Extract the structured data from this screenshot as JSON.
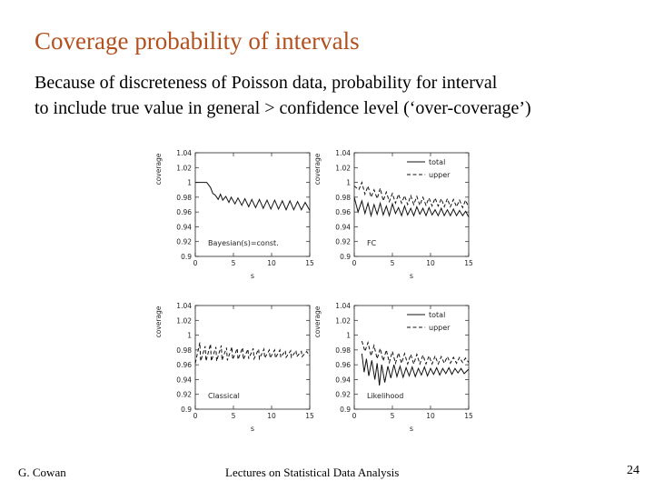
{
  "slide": {
    "title": "Coverage probability of intervals",
    "subtitle_line1": "Because of discreteness of Poisson data, probability for interval",
    "subtitle_line2": "to include true value in general > confidence level (‘over-coverage’)"
  },
  "footer": {
    "author": "G. Cowan",
    "course": "Lectures on Statistical Data Analysis",
    "page": "24"
  },
  "chart_data": [
    {
      "type": "line",
      "title": "Bayesian(s)=const.",
      "xlabel": "s",
      "ylabel": "coverage",
      "xlim": [
        0,
        15
      ],
      "ylim": [
        0.9,
        1.04
      ],
      "xticks": [
        "0",
        "5",
        "10",
        "15"
      ],
      "yticks": [
        "0.9",
        "0.92",
        "0.94",
        "0.96",
        "0.98",
        "1",
        "1.02",
        "1.04"
      ],
      "series": [
        {
          "values": [
            [
              0,
              1.0
            ],
            [
              1.5,
              1.0
            ],
            [
              2.0,
              0.993
            ],
            [
              2.3,
              0.985
            ],
            [
              2.6,
              0.983
            ],
            [
              3.0,
              0.977
            ],
            [
              3.3,
              0.984
            ],
            [
              3.6,
              0.976
            ],
            [
              4.0,
              0.981
            ],
            [
              4.4,
              0.973
            ],
            [
              4.7,
              0.98
            ],
            [
              5.2,
              0.971
            ],
            [
              5.6,
              0.979
            ],
            [
              6.1,
              0.969
            ],
            [
              6.5,
              0.978
            ],
            [
              7.0,
              0.967
            ],
            [
              7.4,
              0.977
            ],
            [
              7.9,
              0.966
            ],
            [
              8.4,
              0.977
            ],
            [
              8.9,
              0.965
            ],
            [
              9.4,
              0.976
            ],
            [
              9.9,
              0.964
            ],
            [
              10.4,
              0.976
            ],
            [
              10.9,
              0.964
            ],
            [
              11.4,
              0.975
            ],
            [
              11.9,
              0.963
            ],
            [
              12.4,
              0.975
            ],
            [
              12.9,
              0.963
            ],
            [
              13.4,
              0.974
            ],
            [
              13.9,
              0.963
            ],
            [
              14.4,
              0.973
            ],
            [
              15.0,
              0.962
            ]
          ],
          "style": "solid"
        }
      ]
    },
    {
      "type": "line",
      "title": "FC",
      "xlabel": "s",
      "ylabel": "coverage",
      "xlim": [
        0,
        15
      ],
      "ylim": [
        0.9,
        1.04
      ],
      "xticks": [
        "0",
        "5",
        "10",
        "15"
      ],
      "yticks": [
        "0.9",
        "0.92",
        "0.94",
        "0.96",
        "0.98",
        "1",
        "1.02",
        "1.04"
      ],
      "series": [
        {
          "name": "total",
          "style": "solid",
          "values": [
            [
              0,
              0.98
            ],
            [
              0.5,
              0.96
            ],
            [
              1.0,
              0.975
            ],
            [
              1.4,
              0.958
            ],
            [
              1.8,
              0.972
            ],
            [
              2.2,
              0.955
            ],
            [
              2.6,
              0.97
            ],
            [
              3.0,
              0.957
            ],
            [
              3.4,
              0.972
            ],
            [
              3.8,
              0.956
            ],
            [
              4.2,
              0.968
            ],
            [
              4.6,
              0.955
            ],
            [
              5.0,
              0.971
            ],
            [
              5.4,
              0.958
            ],
            [
              5.8,
              0.966
            ],
            [
              6.2,
              0.955
            ],
            [
              6.6,
              0.968
            ],
            [
              7.0,
              0.956
            ],
            [
              7.4,
              0.965
            ],
            [
              7.8,
              0.955
            ],
            [
              8.2,
              0.967
            ],
            [
              8.6,
              0.957
            ],
            [
              9.0,
              0.965
            ],
            [
              9.4,
              0.955
            ],
            [
              9.8,
              0.966
            ],
            [
              10.2,
              0.956
            ],
            [
              10.6,
              0.963
            ],
            [
              11.0,
              0.955
            ],
            [
              11.4,
              0.965
            ],
            [
              11.8,
              0.955
            ],
            [
              12.2,
              0.963
            ],
            [
              12.6,
              0.955
            ],
            [
              13.0,
              0.964
            ],
            [
              13.4,
              0.955
            ],
            [
              13.8,
              0.962
            ],
            [
              14.2,
              0.955
            ],
            [
              14.6,
              0.961
            ],
            [
              15.0,
              0.953
            ]
          ]
        },
        {
          "name": "upper",
          "style": "dashed",
          "values": [
            [
              0,
              0.995
            ],
            [
              0.6,
              0.99
            ],
            [
              1.0,
              1.0
            ],
            [
              1.4,
              0.984
            ],
            [
              1.8,
              0.995
            ],
            [
              2.2,
              0.98
            ],
            [
              2.6,
              0.99
            ],
            [
              3.0,
              0.978
            ],
            [
              3.4,
              0.992
            ],
            [
              3.8,
              0.975
            ],
            [
              4.2,
              0.987
            ],
            [
              4.6,
              0.974
            ],
            [
              5.0,
              0.985
            ],
            [
              5.4,
              0.972
            ],
            [
              5.8,
              0.984
            ],
            [
              6.2,
              0.972
            ],
            [
              6.6,
              0.982
            ],
            [
              7.0,
              0.97
            ],
            [
              7.4,
              0.982
            ],
            [
              7.8,
              0.97
            ],
            [
              8.2,
              0.981
            ],
            [
              8.6,
              0.969
            ],
            [
              9.0,
              0.98
            ],
            [
              9.4,
              0.969
            ],
            [
              9.8,
              0.979
            ],
            [
              10.2,
              0.968
            ],
            [
              10.6,
              0.979
            ],
            [
              11.0,
              0.968
            ],
            [
              11.4,
              0.978
            ],
            [
              11.8,
              0.967
            ],
            [
              12.2,
              0.978
            ],
            [
              12.6,
              0.967
            ],
            [
              13.0,
              0.977
            ],
            [
              13.4,
              0.967
            ],
            [
              13.8,
              0.976
            ],
            [
              14.2,
              0.966
            ],
            [
              14.6,
              0.976
            ],
            [
              15.0,
              0.966
            ]
          ]
        }
      ]
    },
    {
      "type": "line",
      "title": "Classical",
      "xlabel": "s",
      "ylabel": "coverage",
      "xlim": [
        0,
        15
      ],
      "ylim": [
        0.9,
        1.04
      ],
      "xticks": [
        "0",
        "5",
        "10",
        "15"
      ],
      "yticks": [
        "0.9",
        "0.92",
        "0.94",
        "0.96",
        "0.98",
        "1",
        "1.02",
        "1.04"
      ],
      "series": [
        {
          "values": [
            [
              0,
              0.962
            ],
            [
              0.6,
              0.99
            ],
            [
              0.7,
              0.965
            ],
            [
              1.3,
              0.985
            ],
            [
              1.4,
              0.965
            ],
            [
              2.0,
              0.988
            ],
            [
              2.1,
              0.965
            ],
            [
              2.7,
              0.984
            ],
            [
              2.8,
              0.965
            ],
            [
              3.4,
              0.986
            ],
            [
              3.5,
              0.966
            ],
            [
              4.1,
              0.983
            ],
            [
              4.2,
              0.966
            ],
            [
              4.8,
              0.984
            ],
            [
              4.9,
              0.967
            ],
            [
              5.5,
              0.982
            ],
            [
              5.6,
              0.967
            ],
            [
              6.2,
              0.983
            ],
            [
              6.3,
              0.967
            ],
            [
              6.9,
              0.981
            ],
            [
              7.0,
              0.968
            ],
            [
              7.6,
              0.982
            ],
            [
              7.7,
              0.968
            ],
            [
              8.3,
              0.981
            ],
            [
              8.4,
              0.968
            ],
            [
              9.0,
              0.981
            ],
            [
              9.1,
              0.969
            ],
            [
              9.7,
              0.98
            ],
            [
              9.8,
              0.969
            ],
            [
              10.4,
              0.98
            ],
            [
              10.5,
              0.969
            ],
            [
              11.1,
              0.98
            ],
            [
              11.2,
              0.97
            ],
            [
              11.8,
              0.979
            ],
            [
              11.9,
              0.97
            ],
            [
              12.5,
              0.979
            ],
            [
              12.6,
              0.97
            ],
            [
              13.2,
              0.979
            ],
            [
              13.3,
              0.971
            ],
            [
              13.9,
              0.978
            ],
            [
              14.0,
              0.971
            ],
            [
              14.6,
              0.978
            ],
            [
              15.0,
              0.972
            ]
          ],
          "style": "dashed"
        }
      ]
    },
    {
      "type": "line",
      "title": "Likelihood",
      "xlabel": "s",
      "ylabel": "coverage",
      "xlim": [
        0,
        15
      ],
      "ylim": [
        0.9,
        1.04
      ],
      "xticks": [
        "0",
        "5",
        "10",
        "15"
      ],
      "yticks": [
        "0.9",
        "0.92",
        "0.94",
        "0.96",
        "0.98",
        "1",
        "1.02",
        "1.04"
      ],
      "series": [
        {
          "name": "total",
          "style": "solid",
          "values": [
            [
              1.0,
              0.975
            ],
            [
              1.3,
              0.95
            ],
            [
              1.6,
              0.968
            ],
            [
              1.9,
              0.945
            ],
            [
              2.3,
              0.966
            ],
            [
              2.7,
              0.94
            ],
            [
              3.0,
              0.962
            ],
            [
              3.3,
              0.932
            ],
            [
              3.6,
              0.96
            ],
            [
              4.0,
              0.936
            ],
            [
              4.4,
              0.958
            ],
            [
              4.8,
              0.942
            ],
            [
              5.2,
              0.96
            ],
            [
              5.6,
              0.944
            ],
            [
              6.0,
              0.958
            ],
            [
              6.4,
              0.943
            ],
            [
              6.8,
              0.956
            ],
            [
              7.2,
              0.945
            ],
            [
              7.6,
              0.957
            ],
            [
              8.0,
              0.944
            ],
            [
              8.4,
              0.955
            ],
            [
              8.8,
              0.946
            ],
            [
              9.2,
              0.957
            ],
            [
              9.6,
              0.945
            ],
            [
              10.0,
              0.955
            ],
            [
              10.4,
              0.947
            ],
            [
              10.8,
              0.956
            ],
            [
              11.2,
              0.946
            ],
            [
              11.6,
              0.955
            ],
            [
              12.0,
              0.948
            ],
            [
              12.4,
              0.956
            ],
            [
              12.8,
              0.947
            ],
            [
              13.2,
              0.955
            ],
            [
              13.6,
              0.949
            ],
            [
              14.0,
              0.955
            ],
            [
              14.4,
              0.948
            ],
            [
              15.0,
              0.954
            ]
          ]
        },
        {
          "name": "upper",
          "style": "dashed",
          "values": [
            [
              1.0,
              0.992
            ],
            [
              1.4,
              0.978
            ],
            [
              1.8,
              0.99
            ],
            [
              2.2,
              0.972
            ],
            [
              2.6,
              0.986
            ],
            [
              3.0,
              0.968
            ],
            [
              3.4,
              0.982
            ],
            [
              3.8,
              0.965
            ],
            [
              4.2,
              0.98
            ],
            [
              4.6,
              0.963
            ],
            [
              5.0,
              0.978
            ],
            [
              5.4,
              0.962
            ],
            [
              5.8,
              0.976
            ],
            [
              6.2,
              0.962
            ],
            [
              6.6,
              0.975
            ],
            [
              7.0,
              0.961
            ],
            [
              7.4,
              0.974
            ],
            [
              7.8,
              0.961
            ],
            [
              8.2,
              0.974
            ],
            [
              8.6,
              0.961
            ],
            [
              9.0,
              0.973
            ],
            [
              9.4,
              0.961
            ],
            [
              9.8,
              0.972
            ],
            [
              10.2,
              0.961
            ],
            [
              10.6,
              0.972
            ],
            [
              11.0,
              0.961
            ],
            [
              11.4,
              0.971
            ],
            [
              11.8,
              0.962
            ],
            [
              12.2,
              0.971
            ],
            [
              12.6,
              0.962
            ],
            [
              13.0,
              0.97
            ],
            [
              13.4,
              0.962
            ],
            [
              13.8,
              0.97
            ],
            [
              14.2,
              0.963
            ],
            [
              14.6,
              0.969
            ],
            [
              15.0,
              0.963
            ]
          ]
        }
      ]
    }
  ]
}
